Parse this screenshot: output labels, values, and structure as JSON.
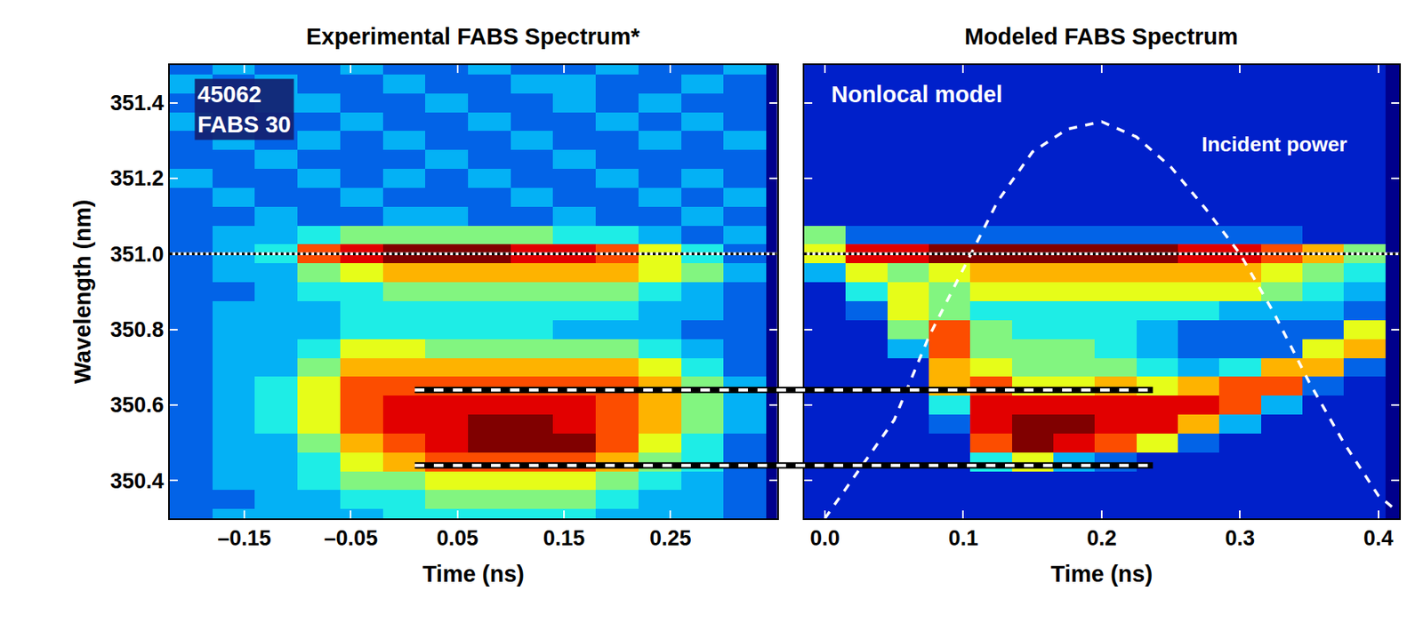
{
  "chart_data": [
    {
      "type": "heatmap",
      "title": "Experimental FABS Spectrum*",
      "x_label": "Time (ns)",
      "y_label": "Wavelength (nm)",
      "box_lines": [
        "45062",
        "FABS 30"
      ],
      "xlim": [
        -0.22,
        0.35
      ],
      "xticks": [
        {
          "value": -0.15,
          "label": "–0.15"
        },
        {
          "value": -0.05,
          "label": "–0.05"
        },
        0.05,
        0.15,
        0.25
      ],
      "ylim": [
        350.3,
        351.5
      ],
      "yticks": [
        350.4,
        350.6,
        350.8,
        {
          "value": 351,
          "label": "351.0"
        },
        351.2,
        351.4
      ],
      "zlim": [
        0,
        10
      ],
      "reference_line": {
        "y": 351.0,
        "line_style": "dotted"
      },
      "x": [
        -0.2,
        -0.16,
        -0.12,
        -0.08,
        -0.04,
        0.0,
        0.04,
        0.08,
        0.12,
        0.16,
        0.2,
        0.24,
        0.28,
        0.32
      ],
      "y": [
        350.3,
        350.35,
        350.4,
        350.45,
        350.5,
        350.55,
        350.6,
        350.65,
        350.7,
        350.75,
        350.8,
        350.85,
        350.9,
        350.95,
        351.0,
        351.05,
        351.1,
        351.15,
        351.2,
        351.25,
        351.3,
        351.35,
        351.4,
        351.45,
        351.5
      ],
      "z": [
        [
          2,
          3,
          3,
          3,
          3,
          4,
          4,
          4,
          4,
          4,
          3,
          3,
          3,
          2
        ],
        [
          2,
          2,
          3,
          3,
          4,
          4,
          5,
          5,
          5,
          5,
          4,
          3,
          3,
          2
        ],
        [
          2,
          3,
          3,
          4,
          5,
          5,
          6,
          6,
          6,
          6,
          5,
          4,
          3,
          2
        ],
        [
          2,
          3,
          3,
          4,
          6,
          7,
          8,
          8,
          8,
          8,
          7,
          5,
          4,
          2
        ],
        [
          2,
          3,
          3,
          5,
          7,
          8,
          9,
          10,
          10,
          10,
          8,
          6,
          4,
          2
        ],
        [
          2,
          3,
          4,
          6,
          8,
          9,
          9,
          10,
          10,
          9,
          8,
          7,
          5,
          3
        ],
        [
          2,
          3,
          4,
          6,
          8,
          9,
          9,
          9,
          9,
          9,
          8,
          7,
          5,
          3
        ],
        [
          2,
          3,
          4,
          6,
          8,
          8,
          8,
          8,
          8,
          8,
          8,
          7,
          5,
          3
        ],
        [
          2,
          3,
          3,
          5,
          7,
          7,
          7,
          7,
          7,
          7,
          7,
          6,
          4,
          2
        ],
        [
          2,
          3,
          3,
          4,
          6,
          6,
          5,
          5,
          5,
          5,
          5,
          4,
          3,
          2
        ],
        [
          2,
          3,
          3,
          3,
          4,
          4,
          4,
          4,
          4,
          3,
          3,
          3,
          2,
          2
        ],
        [
          2,
          3,
          3,
          3,
          4,
          4,
          4,
          4,
          4,
          4,
          4,
          3,
          3,
          2
        ],
        [
          2,
          2,
          3,
          4,
          4,
          5,
          5,
          5,
          5,
          5,
          5,
          4,
          3,
          2
        ],
        [
          2,
          3,
          3,
          5,
          6,
          7,
          7,
          7,
          7,
          7,
          7,
          6,
          5,
          3
        ],
        [
          2,
          3,
          4,
          8,
          9,
          10,
          10,
          10,
          9,
          9,
          8,
          6,
          4,
          2
        ],
        [
          2,
          3,
          3,
          4,
          5,
          5,
          5,
          5,
          5,
          4,
          4,
          3,
          2,
          3
        ],
        [
          2,
          2,
          3,
          2,
          2,
          3,
          3,
          2,
          2,
          3,
          2,
          2,
          3,
          2
        ],
        [
          2,
          3,
          2,
          2,
          3,
          2,
          2,
          2,
          3,
          2,
          2,
          3,
          2,
          3
        ],
        [
          3,
          2,
          2,
          3,
          2,
          3,
          2,
          3,
          2,
          2,
          3,
          2,
          3,
          2
        ],
        [
          2,
          2,
          3,
          2,
          2,
          2,
          3,
          2,
          2,
          3,
          2,
          2,
          2,
          2
        ],
        [
          2,
          3,
          2,
          3,
          2,
          3,
          2,
          2,
          3,
          2,
          2,
          3,
          2,
          3
        ],
        [
          3,
          2,
          2,
          2,
          3,
          2,
          2,
          3,
          2,
          2,
          3,
          2,
          3,
          2
        ],
        [
          2,
          2,
          3,
          3,
          2,
          2,
          3,
          2,
          2,
          3,
          2,
          3,
          2,
          2
        ],
        [
          3,
          2,
          3,
          2,
          2,
          3,
          2,
          2,
          3,
          3,
          2,
          2,
          3,
          2
        ],
        [
          2,
          3,
          2,
          2,
          3,
          2,
          2,
          3,
          2,
          2,
          3,
          2,
          2,
          3
        ]
      ]
    },
    {
      "type": "heatmap",
      "title": "Modeled FABS Spectrum",
      "x_label": "Time (ns)",
      "box_lines": [
        "Nonlocal model"
      ],
      "tick_labels": "x",
      "xlim": [
        -0.015,
        0.415
      ],
      "xticks": [
        {
          "value": 0,
          "label": "0.0"
        },
        0.1,
        0.2,
        0.3,
        0.4
      ],
      "ylim": [
        350.3,
        351.5
      ],
      "yticks": [
        350.4,
        350.6,
        350.8,
        {
          "value": 351,
          "label": "351.0"
        },
        351.2,
        351.4
      ],
      "zlim": [
        0,
        10
      ],
      "reference_line": {
        "y": 351.0,
        "line_style": "dotted"
      },
      "x": [
        0.0,
        0.03,
        0.06,
        0.09,
        0.12,
        0.15,
        0.18,
        0.21,
        0.24,
        0.27,
        0.3,
        0.33,
        0.36,
        0.39
      ],
      "y": [
        350.3,
        350.35,
        350.4,
        350.45,
        350.5,
        350.55,
        350.6,
        350.65,
        350.7,
        350.75,
        350.8,
        350.85,
        350.9,
        350.95,
        351.0,
        351.05,
        351.1,
        351.15,
        351.2,
        351.25,
        351.3,
        351.35,
        351.4,
        351.45,
        351.5
      ],
      "z": [
        [
          1,
          1,
          1,
          1,
          1,
          1,
          1,
          1,
          1,
          1,
          1,
          1,
          1,
          1
        ],
        [
          1,
          1,
          1,
          1,
          1,
          1,
          1,
          1,
          1,
          1,
          1,
          1,
          1,
          1
        ],
        [
          1,
          1,
          1,
          1,
          1,
          1,
          1,
          1,
          1,
          1,
          1,
          1,
          1,
          1
        ],
        [
          1,
          1,
          1,
          1,
          4,
          6,
          3,
          2,
          1,
          1,
          1,
          1,
          1,
          1
        ],
        [
          1,
          1,
          1,
          1,
          8,
          10,
          9,
          8,
          6,
          2,
          1,
          1,
          1,
          1
        ],
        [
          1,
          1,
          1,
          2,
          9,
          10,
          10,
          9,
          9,
          7,
          3,
          1,
          1,
          1
        ],
        [
          1,
          1,
          1,
          4,
          9,
          9,
          9,
          9,
          9,
          9,
          8,
          3,
          1,
          1
        ],
        [
          1,
          1,
          1,
          7,
          8,
          6,
          6,
          7,
          6,
          7,
          8,
          8,
          2,
          1
        ],
        [
          1,
          1,
          1,
          7,
          6,
          5,
          5,
          5,
          4,
          3,
          4,
          7,
          7,
          2
        ],
        [
          1,
          1,
          3,
          8,
          5,
          5,
          5,
          4,
          3,
          2,
          2,
          2,
          6,
          7
        ],
        [
          1,
          1,
          5,
          8,
          5,
          4,
          4,
          4,
          3,
          2,
          2,
          2,
          2,
          6
        ],
        [
          1,
          2,
          6,
          5,
          4,
          4,
          4,
          4,
          4,
          4,
          3,
          3,
          3,
          2
        ],
        [
          1,
          4,
          6,
          5,
          6,
          6,
          6,
          6,
          6,
          6,
          6,
          5,
          4,
          3
        ],
        [
          3,
          6,
          5,
          6,
          7,
          7,
          7,
          7,
          7,
          7,
          7,
          6,
          5,
          4
        ],
        [
          6,
          9,
          9,
          10,
          10,
          10,
          10,
          10,
          10,
          9,
          9,
          8,
          7,
          5
        ],
        [
          5,
          2,
          2,
          2,
          2,
          2,
          2,
          2,
          2,
          2,
          2,
          2,
          1,
          1
        ],
        [
          1,
          1,
          1,
          1,
          1,
          1,
          1,
          1,
          1,
          1,
          1,
          1,
          1,
          1
        ],
        [
          1,
          1,
          1,
          1,
          1,
          1,
          1,
          1,
          1,
          1,
          1,
          1,
          1,
          1
        ],
        [
          1,
          1,
          1,
          1,
          1,
          1,
          1,
          1,
          1,
          1,
          1,
          1,
          1,
          1
        ],
        [
          1,
          1,
          1,
          1,
          1,
          1,
          1,
          1,
          1,
          1,
          1,
          1,
          1,
          1
        ],
        [
          1,
          1,
          1,
          1,
          1,
          1,
          1,
          1,
          1,
          1,
          1,
          1,
          1,
          1
        ],
        [
          1,
          1,
          1,
          1,
          1,
          1,
          1,
          1,
          1,
          1,
          1,
          1,
          1,
          1
        ],
        [
          1,
          1,
          1,
          1,
          1,
          1,
          1,
          1,
          1,
          1,
          1,
          1,
          1,
          1
        ],
        [
          1,
          1,
          1,
          1,
          1,
          1,
          1,
          1,
          1,
          1,
          1,
          1,
          1,
          1
        ],
        [
          1,
          1,
          1,
          1,
          1,
          1,
          1,
          1,
          1,
          1,
          1,
          1,
          1,
          1
        ]
      ],
      "series": [
        {
          "name": "Incident power",
          "type": "line",
          "color": "#ffffff",
          "line_style": "dashed",
          "label_at": {
            "x": 0.325,
            "y": 351.29
          },
          "x": [
            0.0,
            0.025,
            0.05,
            0.075,
            0.1,
            0.125,
            0.15,
            0.175,
            0.2,
            0.225,
            0.25,
            0.275,
            0.3,
            0.325,
            0.35,
            0.375,
            0.4,
            0.41
          ],
          "values": [
            350.3,
            350.43,
            350.56,
            350.78,
            350.96,
            351.14,
            351.27,
            351.33,
            351.35,
            351.31,
            351.23,
            351.12,
            351.0,
            350.84,
            350.66,
            350.5,
            350.36,
            350.33
          ]
        }
      ]
    }
  ],
  "connectors": [
    {
      "y": 350.64,
      "from": 0.01,
      "to": 0.237,
      "line_style": "dashed"
    },
    {
      "y": 350.44,
      "from": 0.01,
      "to": 0.237,
      "line_style": "dashed"
    }
  ]
}
